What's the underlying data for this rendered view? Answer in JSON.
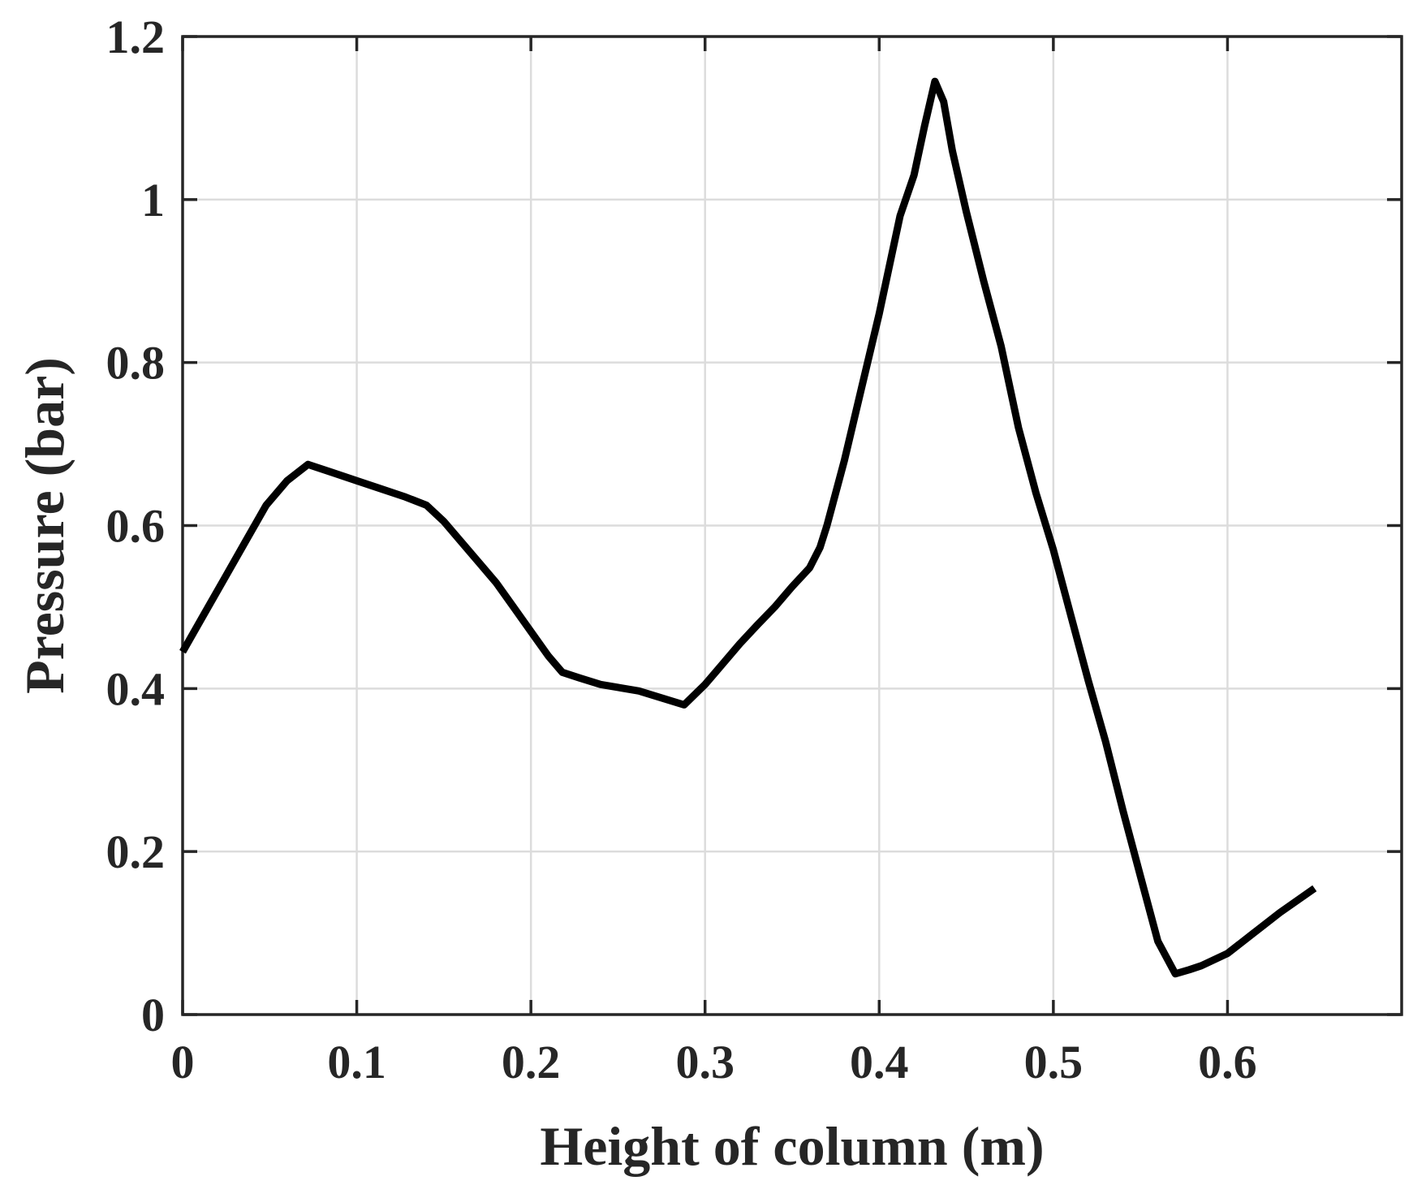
{
  "chart_data": {
    "type": "line",
    "title": "",
    "xlabel": "Height of column (m)",
    "ylabel": "Pressure (bar)",
    "xlim": [
      0,
      0.7
    ],
    "ylim": [
      0,
      1.2
    ],
    "x_ticks": [
      0,
      0.1,
      0.2,
      0.3,
      0.4,
      0.5,
      0.6
    ],
    "x_tick_labels": [
      "0",
      "0.1",
      "0.2",
      "0.3",
      "0.4",
      "0.5",
      "0.6"
    ],
    "y_ticks": [
      0,
      0.2,
      0.4,
      0.6,
      0.8,
      1,
      1.2
    ],
    "y_tick_labels": [
      "0",
      "0.2",
      "0.4",
      "0.6",
      "0.8",
      "1",
      "1.2"
    ],
    "grid": true,
    "legend": false,
    "line_color": "#000000",
    "grid_color": "#dcdcdc",
    "axis_color": "#262626",
    "series": [
      {
        "x": [
          0,
          0.012,
          0.024,
          0.036,
          0.048,
          0.06,
          0.072,
          0.086,
          0.1,
          0.114,
          0.128,
          0.14,
          0.15,
          0.16,
          0.17,
          0.18,
          0.19,
          0.2,
          0.21,
          0.218,
          0.228,
          0.24,
          0.262,
          0.288,
          0.3,
          0.31,
          0.32,
          0.33,
          0.34,
          0.35,
          0.36,
          0.366,
          0.37,
          0.38,
          0.39,
          0.4,
          0.405,
          0.412,
          0.42,
          0.426,
          0.432,
          0.437,
          0.442,
          0.45,
          0.46,
          0.47,
          0.475,
          0.48,
          0.49,
          0.5,
          0.51,
          0.52,
          0.53,
          0.54,
          0.55,
          0.56,
          0.57,
          0.578,
          0.585,
          0.6,
          0.615,
          0.63,
          0.65
        ],
        "y": [
          0.445,
          0.49,
          0.535,
          0.58,
          0.625,
          0.655,
          0.675,
          0.665,
          0.655,
          0.645,
          0.635,
          0.625,
          0.605,
          0.58,
          0.555,
          0.53,
          0.5,
          0.47,
          0.44,
          0.42,
          0.413,
          0.405,
          0.397,
          0.38,
          0.405,
          0.43,
          0.455,
          0.478,
          0.5,
          0.525,
          0.548,
          0.573,
          0.6,
          0.68,
          0.77,
          0.86,
          0.91,
          0.98,
          1.03,
          1.09,
          1.145,
          1.12,
          1.06,
          0.985,
          0.9,
          0.82,
          0.77,
          0.72,
          0.64,
          0.57,
          0.49,
          0.41,
          0.335,
          0.25,
          0.17,
          0.09,
          0.05,
          0.055,
          0.06,
          0.075,
          0.1,
          0.125,
          0.155
        ]
      }
    ]
  }
}
